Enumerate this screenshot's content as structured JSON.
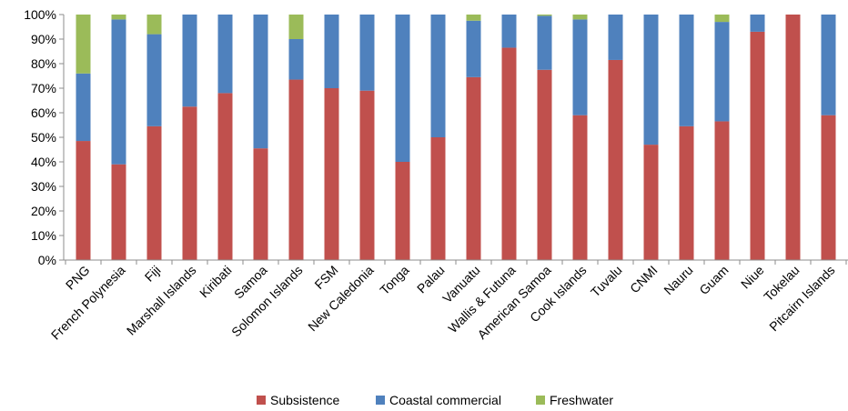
{
  "chart_data": {
    "type": "bar",
    "stacked": true,
    "grid": false,
    "legend_position": "bottom",
    "ylim": [
      0,
      100
    ],
    "yticks": [
      "0%",
      "10%",
      "20%",
      "30%",
      "40%",
      "50%",
      "60%",
      "70%",
      "80%",
      "90%",
      "100%"
    ],
    "categories": [
      "PNG",
      "French Polynesia",
      "Fiji",
      "Marshall Islands",
      "Kiribati",
      "Samoa",
      "Solomon Islands",
      "FSM",
      "New Caledonia",
      "Tonga",
      "Palau",
      "Vanuatu",
      "Wallis & Futuna",
      "American Samoa",
      "Cook Islands",
      "Tuvalu",
      "CNMI",
      "Nauru",
      "Guam",
      "Niue",
      "Tokelau",
      "Pitcairn Islands"
    ],
    "series": [
      {
        "name": "Subsistence",
        "color": "#c0504d",
        "values": [
          48.5,
          39,
          54.5,
          62.5,
          68,
          45.5,
          73.5,
          70,
          69,
          40,
          50,
          74.5,
          86.5,
          77.5,
          59,
          81.5,
          47,
          54.5,
          56.5,
          93,
          100,
          59
        ]
      },
      {
        "name": "Coastal commercial",
        "color": "#4f81bd",
        "values": [
          27.5,
          59,
          37.5,
          37.5,
          32,
          54.5,
          16.5,
          30,
          31,
          60,
          50,
          23,
          13.5,
          22,
          39,
          18.5,
          53,
          45.5,
          40.5,
          7,
          0,
          41
        ]
      },
      {
        "name": "Freshwater",
        "color": "#9bbb59",
        "values": [
          24,
          2,
          8,
          0,
          0,
          0,
          10,
          0,
          0,
          0,
          0,
          2.5,
          0,
          0.5,
          2,
          0,
          0,
          0,
          3,
          0,
          0,
          0
        ]
      }
    ]
  }
}
